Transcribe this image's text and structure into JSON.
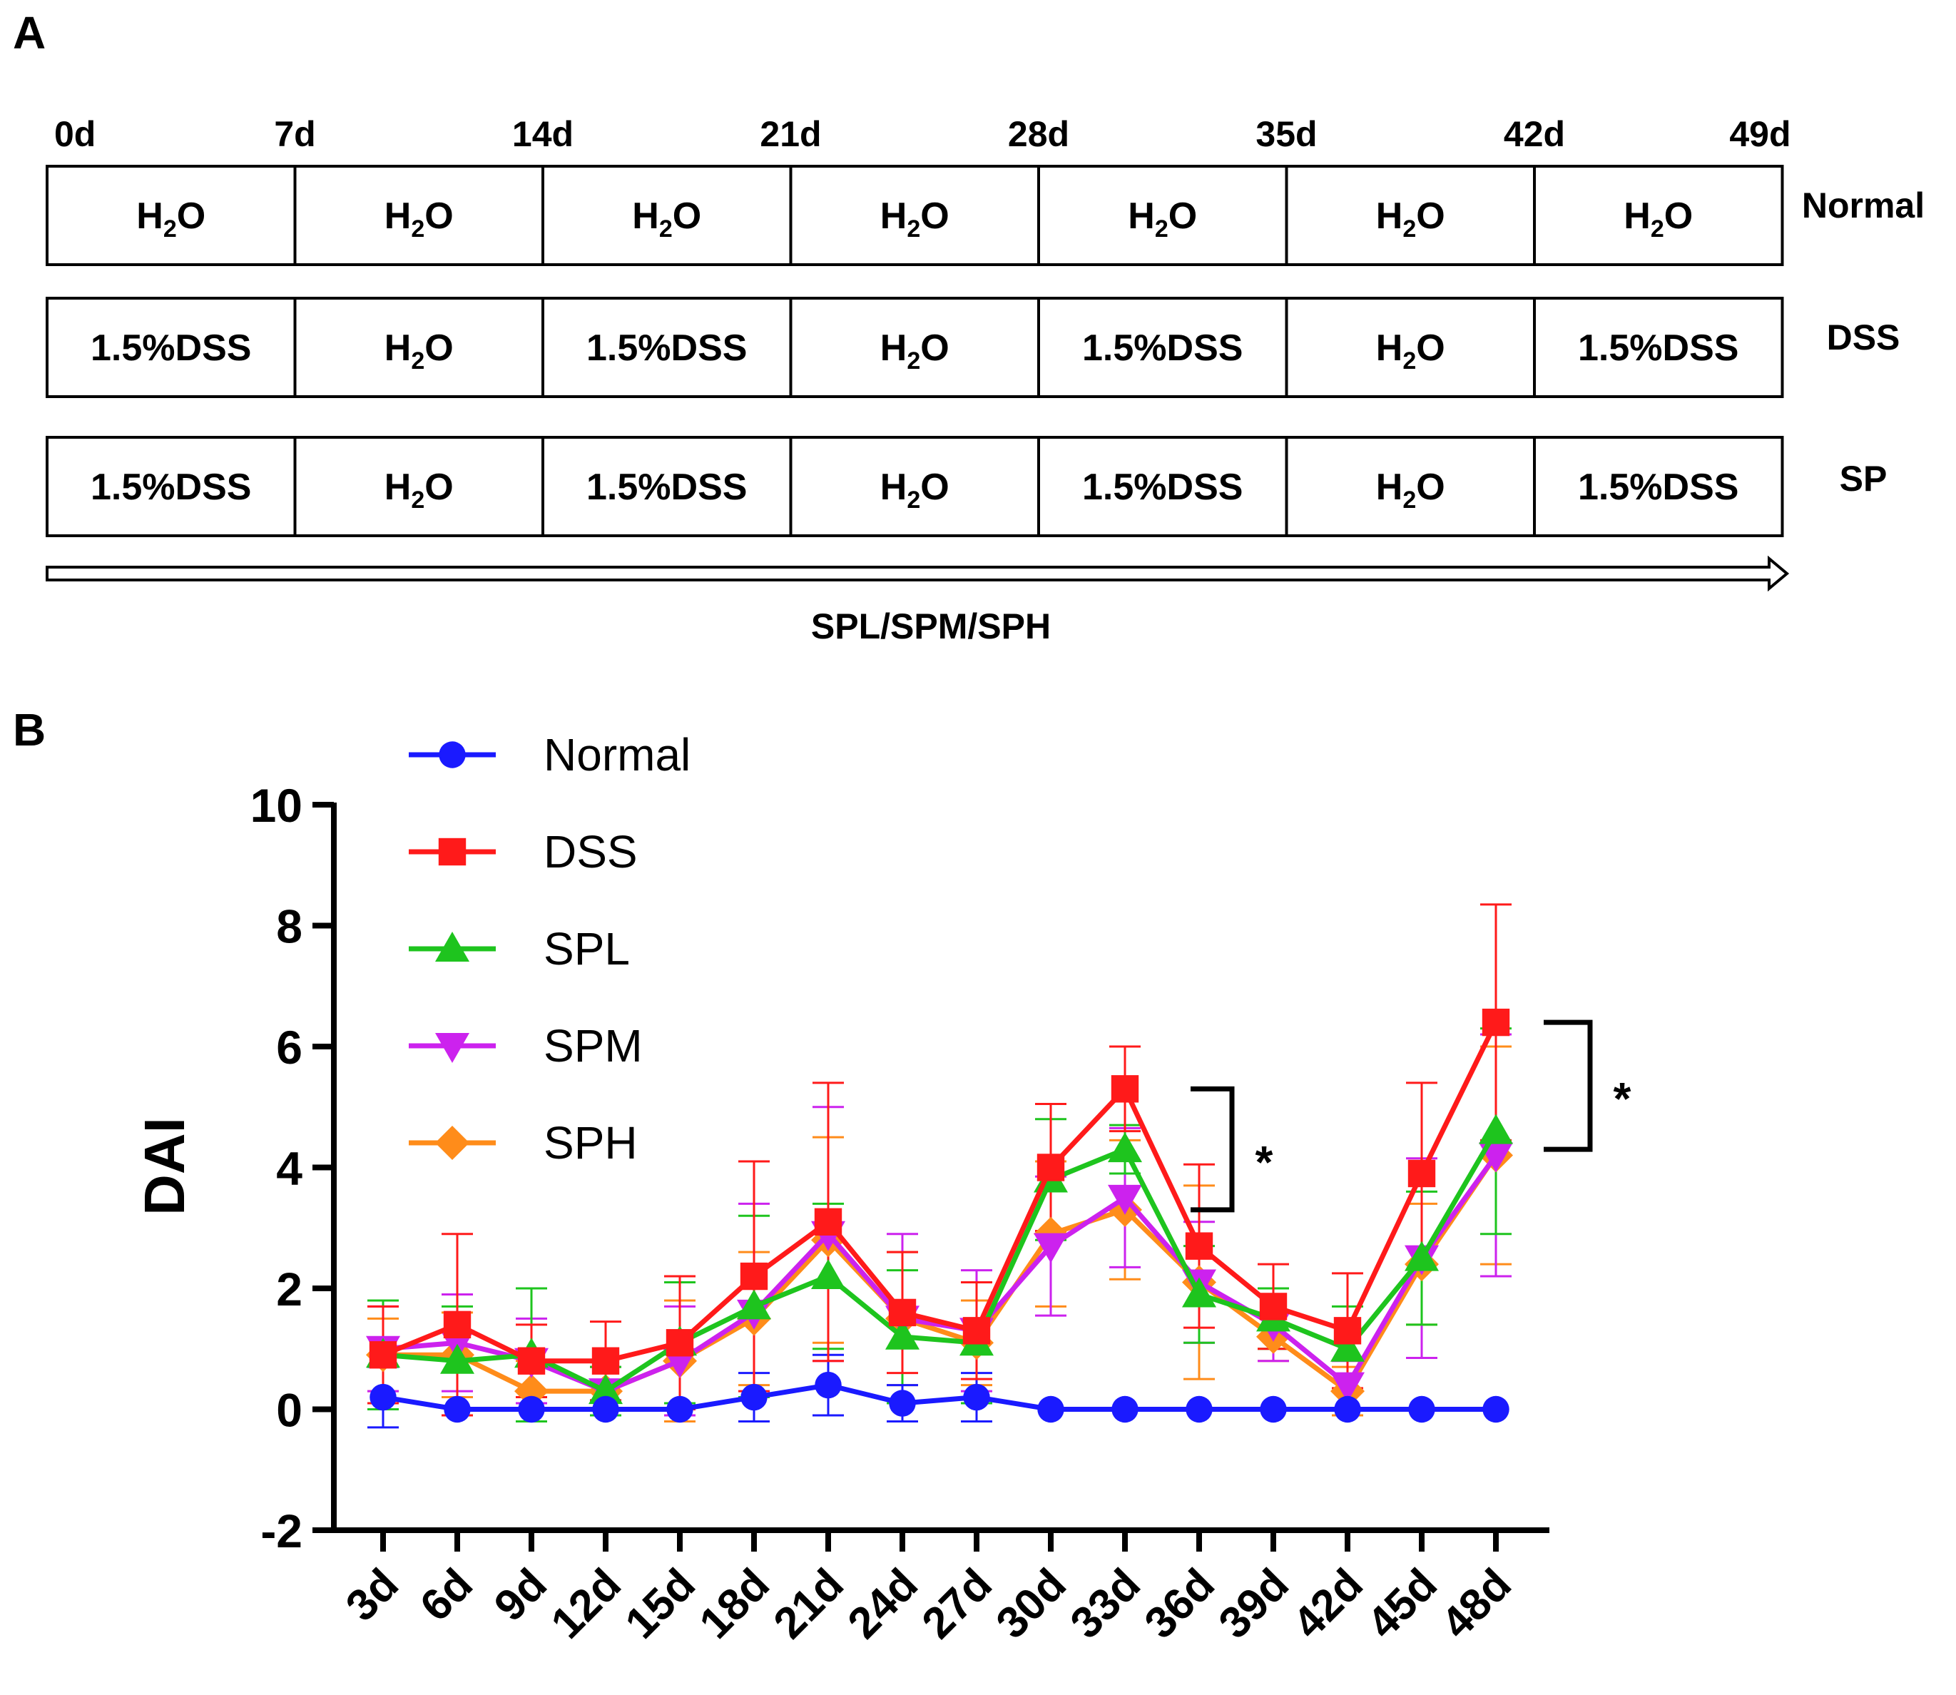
{
  "panel_a": {
    "label": "A",
    "days": [
      "0d",
      "7d",
      "14d",
      "21d",
      "28d",
      "35d",
      "42d",
      "49d"
    ],
    "rows": [
      {
        "name": "Normal",
        "cells": [
          {
            "main": "H",
            "sub": "2",
            "tail": "O"
          },
          {
            "main": "H",
            "sub": "2",
            "tail": "O"
          },
          {
            "main": "H",
            "sub": "2",
            "tail": "O"
          },
          {
            "main": "H",
            "sub": "2",
            "tail": "O"
          },
          {
            "main": "H",
            "sub": "2",
            "tail": "O"
          },
          {
            "main": "H",
            "sub": "2",
            "tail": "O"
          },
          {
            "main": "H",
            "sub": "2",
            "tail": "O"
          }
        ]
      },
      {
        "name": "DSS",
        "cells": [
          {
            "main": "1.5%DSS"
          },
          {
            "main": "H",
            "sub": "2",
            "tail": "O"
          },
          {
            "main": "1.5%DSS"
          },
          {
            "main": "H",
            "sub": "2",
            "tail": "O"
          },
          {
            "main": "1.5%DSS"
          },
          {
            "main": "H",
            "sub": "2",
            "tail": "O"
          },
          {
            "main": "1.5%DSS"
          }
        ]
      },
      {
        "name": "SP",
        "cells": [
          {
            "main": "1.5%DSS"
          },
          {
            "main": "H",
            "sub": "2",
            "tail": "O"
          },
          {
            "main": "1.5%DSS"
          },
          {
            "main": "H",
            "sub": "2",
            "tail": "O"
          },
          {
            "main": "1.5%DSS"
          },
          {
            "main": "H",
            "sub": "2",
            "tail": "O"
          },
          {
            "main": "1.5%DSS"
          }
        ]
      }
    ],
    "arrow_label": "SPL/SPM/SPH"
  },
  "chart_data": {
    "panel_label": "B",
    "type": "line",
    "ylabel": "DAI",
    "xlabel": "",
    "ylim": [
      -2,
      10
    ],
    "yticks": [
      -2,
      0,
      2,
      4,
      6,
      8,
      10
    ],
    "categories": [
      "3d",
      "6d",
      "9d",
      "12d",
      "15d",
      "18d",
      "21d",
      "24d",
      "27d",
      "30d",
      "33d",
      "36d",
      "39d",
      "42d",
      "45d",
      "48d"
    ],
    "series": [
      {
        "name": "Normal",
        "color": "#1a1aff",
        "marker": "circle",
        "values": [
          0.2,
          0,
          0,
          0,
          0,
          0.2,
          0.4,
          0.1,
          0.2,
          0,
          0,
          0,
          0,
          0,
          0,
          0
        ],
        "err": [
          0.5,
          0,
          0,
          0,
          0,
          0.4,
          0.5,
          0.3,
          0.4,
          0,
          0,
          0,
          0,
          0,
          0,
          0
        ]
      },
      {
        "name": "DSS",
        "color": "#ff1a1a",
        "marker": "square",
        "values": [
          0.9,
          1.4,
          0.8,
          0.8,
          1.1,
          2.2,
          3.1,
          1.6,
          1.3,
          4.0,
          5.3,
          2.7,
          1.7,
          1.3,
          3.9,
          6.4
        ],
        "err": [
          0.8,
          1.5,
          0.6,
          0.65,
          1.1,
          1.9,
          2.3,
          1.0,
          0.8,
          1.05,
          0.7,
          1.35,
          0.7,
          0.95,
          1.5,
          1.95
        ]
      },
      {
        "name": "SPL",
        "color": "#1ec41e",
        "marker": "triangle-up",
        "values": [
          0.9,
          0.8,
          0.9,
          0.3,
          1.1,
          1.7,
          2.2,
          1.2,
          1.1,
          3.8,
          4.3,
          1.9,
          1.5,
          1.0,
          2.5,
          4.6
        ],
        "err": [
          0.9,
          0.9,
          1.1,
          0.4,
          1.0,
          1.5,
          1.2,
          1.1,
          1.0,
          1.0,
          0.4,
          0.8,
          0.5,
          0.7,
          1.1,
          1.7
        ]
      },
      {
        "name": "SPM",
        "color": "#cc22ee",
        "marker": "triangle-down",
        "values": [
          1.0,
          1.1,
          0.8,
          0.3,
          0.8,
          1.6,
          2.9,
          1.5,
          1.3,
          2.7,
          3.5,
          2.1,
          1.4,
          0.4,
          2.5,
          4.2
        ],
        "err": [
          0.7,
          0.8,
          0.7,
          0.4,
          0.9,
          1.8,
          2.1,
          1.4,
          1.0,
          1.15,
          1.15,
          1.0,
          0.6,
          0.4,
          1.65,
          2.0
        ]
      },
      {
        "name": "SPH",
        "color": "#ff8c1a",
        "marker": "diamond",
        "values": [
          0.9,
          0.9,
          0.3,
          0.3,
          0.8,
          1.5,
          2.8,
          1.5,
          1.1,
          2.9,
          3.3,
          2.1,
          1.2,
          0.3,
          2.4,
          4.2
        ],
        "err": [
          0.6,
          0.7,
          0.5,
          0.4,
          1.0,
          1.1,
          1.7,
          1.1,
          0.7,
          1.2,
          1.15,
          1.6,
          0.4,
          0.4,
          1.0,
          1.8
        ]
      }
    ],
    "annotations": [
      {
        "text": "*",
        "type": "bracket",
        "from": "33d",
        "to": "36d",
        "y_top": 5.3,
        "y_bottom": 3.3
      },
      {
        "text": "*",
        "type": "bracket",
        "from": "48d",
        "to": "48d",
        "y_top": 6.4,
        "y_bottom": 4.3
      }
    ]
  }
}
